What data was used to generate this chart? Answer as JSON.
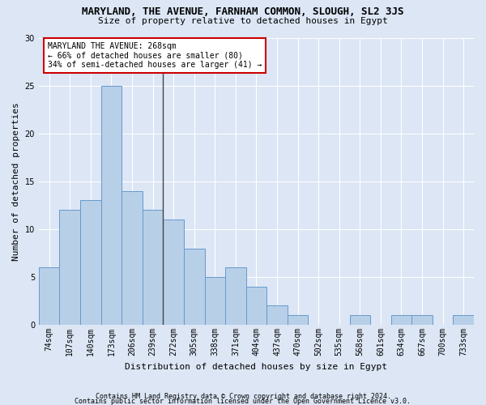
{
  "title": "MARYLAND, THE AVENUE, FARNHAM COMMON, SLOUGH, SL2 3JS",
  "subtitle": "Size of property relative to detached houses in Egypt",
  "xlabel": "Distribution of detached houses by size in Egypt",
  "ylabel": "Number of detached properties",
  "footnote1": "Contains HM Land Registry data © Crown copyright and database right 2024.",
  "footnote2": "Contains public sector information licensed under the Open Government Licence v3.0.",
  "bar_labels": [
    "74sqm",
    "107sqm",
    "140sqm",
    "173sqm",
    "206sqm",
    "239sqm",
    "272sqm",
    "305sqm",
    "338sqm",
    "371sqm",
    "404sqm",
    "437sqm",
    "470sqm",
    "502sqm",
    "535sqm",
    "568sqm",
    "601sqm",
    "634sqm",
    "667sqm",
    "700sqm",
    "733sqm"
  ],
  "bar_values": [
    6,
    12,
    13,
    25,
    14,
    12,
    11,
    8,
    5,
    6,
    4,
    2,
    1,
    0,
    0,
    1,
    0,
    1,
    1,
    0,
    1
  ],
  "bar_color": "#b8cfe8",
  "bar_edge_color": "#6699cc",
  "annotation_title": "MARYLAND THE AVENUE: 268sqm",
  "annotation_line1": "← 66% of detached houses are smaller (80)",
  "annotation_line2": "34% of semi-detached houses are larger (41) →",
  "annotation_box_color": "#ffffff",
  "annotation_box_edge": "#cc0000",
  "property_line_bin": 6,
  "ylim": [
    0,
    30
  ],
  "yticks": [
    0,
    5,
    10,
    15,
    20,
    25,
    30
  ],
  "background_color": "#dce6f5",
  "grid_color": "#ffffff",
  "title_fontsize": 9,
  "subtitle_fontsize": 8,
  "ylabel_fontsize": 8,
  "xlabel_fontsize": 8,
  "tick_fontsize": 7,
  "footnote_fontsize": 6
}
